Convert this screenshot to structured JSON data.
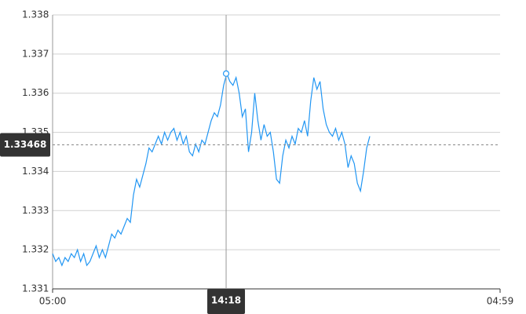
{
  "chart_data": {
    "type": "line",
    "x": [
      0,
      10,
      20,
      30,
      40,
      50,
      60,
      70,
      80,
      90,
      100,
      110,
      120,
      130,
      140,
      150,
      160,
      170,
      180,
      190,
      200,
      210,
      220,
      230,
      240,
      250,
      260,
      270,
      280,
      290,
      300,
      310,
      320,
      330,
      340,
      350,
      360,
      370,
      380,
      390,
      400,
      410,
      420,
      430,
      440,
      450,
      460,
      470,
      480,
      490,
      500,
      510,
      520,
      530,
      540,
      550,
      560,
      570,
      580,
      590,
      600,
      610,
      620,
      630,
      640,
      650,
      660,
      670,
      680,
      690,
      700,
      710,
      720,
      730,
      740,
      750,
      760,
      770,
      780,
      790,
      800,
      810,
      820,
      830,
      840,
      850,
      860,
      870,
      880,
      890,
      900,
      910,
      920,
      930,
      940,
      950,
      960,
      970,
      980,
      990,
      1000,
      1010,
      1020
    ],
    "values": [
      1.3319,
      1.3317,
      1.3318,
      1.3316,
      1.3318,
      1.3317,
      1.3319,
      1.3318,
      1.332,
      1.3317,
      1.3319,
      1.3316,
      1.3317,
      1.3319,
      1.3321,
      1.3318,
      1.332,
      1.3318,
      1.3321,
      1.3324,
      1.3323,
      1.3325,
      1.3324,
      1.3326,
      1.3328,
      1.3327,
      1.3334,
      1.3338,
      1.3336,
      1.3339,
      1.3342,
      1.3346,
      1.3345,
      1.3347,
      1.3349,
      1.3347,
      1.335,
      1.3348,
      1.335,
      1.3351,
      1.3348,
      1.335,
      1.3347,
      1.3349,
      1.3345,
      1.3344,
      1.3347,
      1.3345,
      1.3348,
      1.3347,
      1.335,
      1.3353,
      1.3355,
      1.3354,
      1.3357,
      1.3362,
      1.3365,
      1.3363,
      1.3362,
      1.3364,
      1.336,
      1.3354,
      1.3356,
      1.3345,
      1.335,
      1.336,
      1.3353,
      1.3348,
      1.3352,
      1.3349,
      1.335,
      1.3345,
      1.3338,
      1.3337,
      1.3344,
      1.3348,
      1.3346,
      1.3349,
      1.3347,
      1.3351,
      1.335,
      1.3353,
      1.3349,
      1.3358,
      1.3364,
      1.3361,
      1.3363,
      1.3356,
      1.3352,
      1.335,
      1.3349,
      1.3351,
      1.3348,
      1.335,
      1.3347,
      1.3341,
      1.3344,
      1.3342,
      1.3337,
      1.3335,
      1.334,
      1.3346,
      1.3349
    ],
    "color": "#2196f3",
    "xlim": [
      0,
      1439
    ],
    "xticks": [
      {
        "value": 0,
        "label": "05:00"
      },
      {
        "value": 1439,
        "label": "04:59"
      }
    ],
    "ylim": [
      1.331,
      1.338
    ],
    "yticks": [
      1.331,
      1.332,
      1.333,
      1.334,
      1.335,
      1.336,
      1.337,
      1.338
    ],
    "grid": true,
    "crosshair": {
      "x": {
        "value": 558,
        "label": "14:18"
      },
      "y": 1.33468,
      "point": 1.3365
    }
  }
}
